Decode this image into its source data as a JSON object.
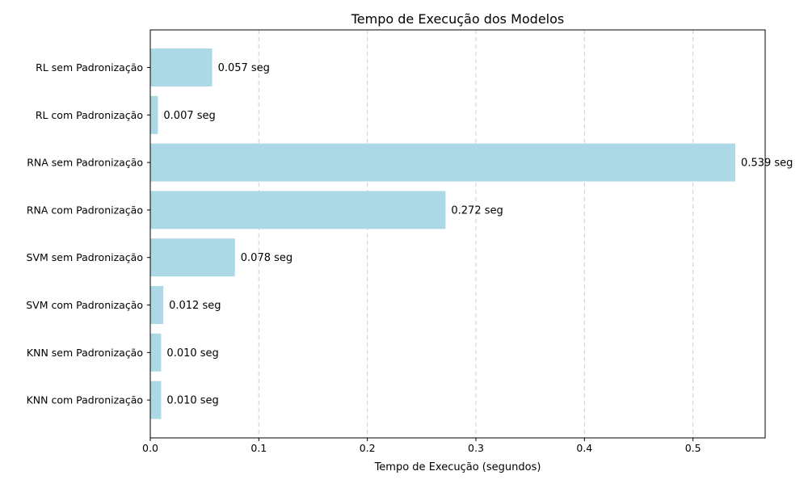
{
  "chart_data": {
    "type": "bar",
    "orientation": "horizontal",
    "title": "Tempo de Execução dos Modelos",
    "xlabel": "Tempo de Execução (segundos)",
    "ylabel": "",
    "xlim": [
      0,
      0.5665
    ],
    "x_ticks": [
      0.0,
      0.1,
      0.2,
      0.3,
      0.4,
      0.5
    ],
    "x_tick_labels": [
      "0.0",
      "0.1",
      "0.2",
      "0.3",
      "0.4",
      "0.5"
    ],
    "grid": "x-axis dashed",
    "bar_color": "#add8e6",
    "value_label_suffix": " seg",
    "categories": [
      "RL sem Padronização",
      "RL com Padronização",
      "RNA sem Padronização",
      "RNA com Padronização",
      "SVM sem Padronização",
      "SVM com Padronização",
      "KNN sem Padronização",
      "KNN com Padronização"
    ],
    "values": [
      0.057,
      0.007,
      0.539,
      0.272,
      0.078,
      0.012,
      0.01,
      0.01
    ],
    "value_labels": [
      "0.057 seg",
      "0.007 seg",
      "0.539 seg",
      "0.272 seg",
      "0.078 seg",
      "0.012 seg",
      "0.010 seg",
      "0.010 seg"
    ]
  }
}
